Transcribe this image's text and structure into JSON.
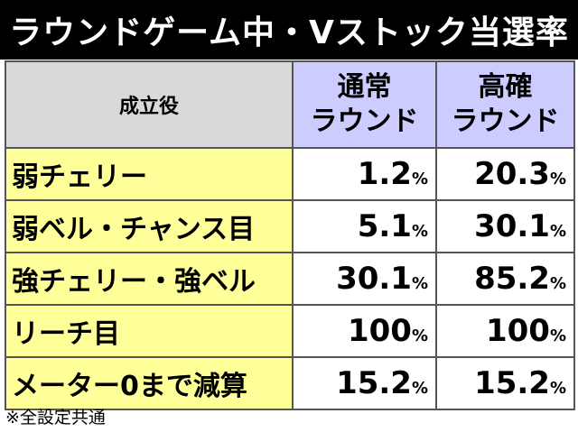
{
  "title": "ラウンドゲーム中・Vストック当選率",
  "table": {
    "header_role": "成立役",
    "header_normal": [
      "通常",
      "ラウンド"
    ],
    "header_high": [
      "高確",
      "ラウンド"
    ],
    "rows": [
      {
        "role": "弱チェリー",
        "normal": "1.2",
        "high": "20.3"
      },
      {
        "role": "弱ベル・チャンス目",
        "normal": "5.1",
        "high": "30.1"
      },
      {
        "role": "強チェリー・強ベル",
        "normal": "30.1",
        "high": "85.2"
      },
      {
        "role": "リーチ目",
        "normal": "100",
        "high": "100"
      },
      {
        "role": "メーター0まで減算",
        "normal": "15.2",
        "high": "15.2"
      }
    ],
    "percent_sign": "%"
  },
  "footnote": "※全設定共通"
}
